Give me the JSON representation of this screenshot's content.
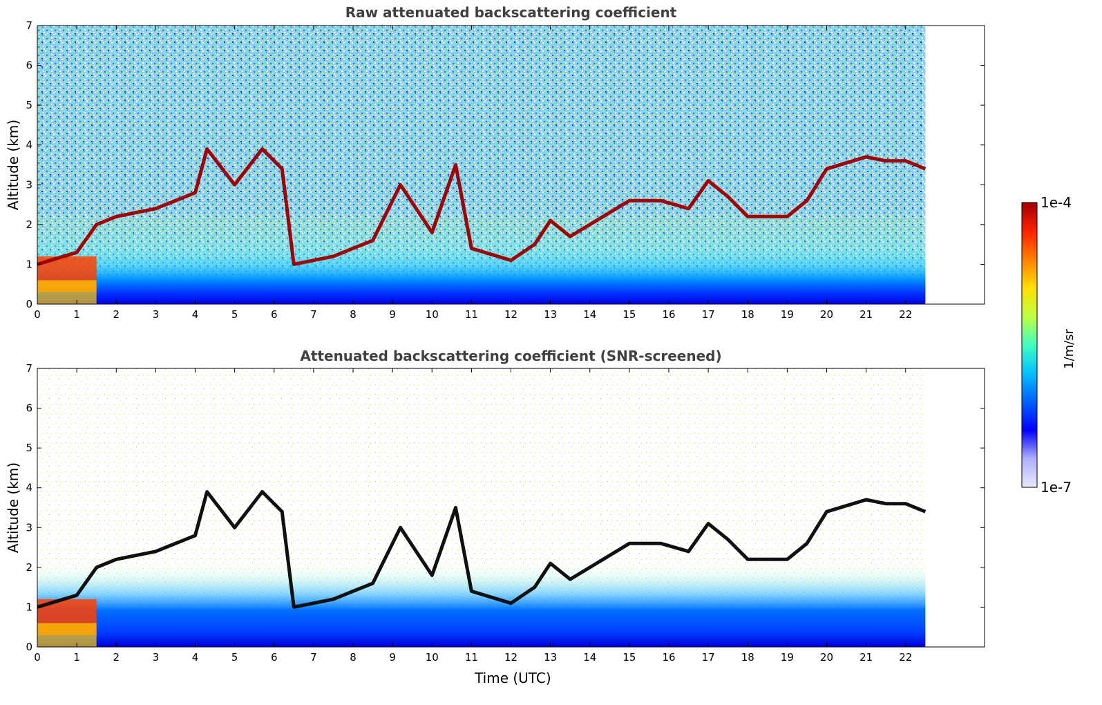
{
  "chart_data": [
    {
      "type": "heatmap",
      "title": "Raw attenuated backscattering coefficient",
      "xlabel": "",
      "ylabel": "Altitude (km)",
      "xlim": [
        0,
        24
      ],
      "ylim": [
        0,
        7
      ],
      "x_ticks": [
        "0",
        "1",
        "2",
        "3",
        "4",
        "5",
        "6",
        "7",
        "8",
        "9",
        "10",
        "11",
        "12",
        "13",
        "14",
        "15",
        "16",
        "17",
        "18",
        "19",
        "20",
        "21",
        "22"
      ],
      "y_ticks": [
        "0",
        "1",
        "2",
        "3",
        "4",
        "5",
        "6",
        "7"
      ],
      "data_end_hour": 22.5,
      "cloud_layer_altitude_km": [
        [
          0,
          1.0
        ],
        [
          1,
          1.3
        ],
        [
          1.5,
          2.0
        ],
        [
          2,
          2.2
        ],
        [
          3,
          2.4
        ],
        [
          4,
          2.8
        ],
        [
          4.3,
          3.9
        ],
        [
          5,
          3.0
        ],
        [
          5.7,
          3.9
        ],
        [
          6.2,
          3.4
        ],
        [
          6.5,
          1.0
        ],
        [
          7.5,
          1.2
        ],
        [
          8.5,
          1.6
        ],
        [
          9.2,
          3.0
        ],
        [
          10,
          1.8
        ],
        [
          10.6,
          3.5
        ],
        [
          11,
          1.4
        ],
        [
          12,
          1.1
        ],
        [
          12.6,
          1.5
        ],
        [
          13,
          2.1
        ],
        [
          13.5,
          1.7
        ],
        [
          14,
          2.0
        ],
        [
          15,
          2.6
        ],
        [
          15.8,
          2.6
        ],
        [
          16.5,
          2.4
        ],
        [
          17,
          3.1
        ],
        [
          17.5,
          2.7
        ],
        [
          18,
          2.2
        ],
        [
          19,
          2.2
        ],
        [
          19.5,
          2.6
        ],
        [
          20,
          3.4
        ],
        [
          21,
          3.7
        ],
        [
          21.5,
          3.6
        ],
        [
          22,
          3.6
        ],
        [
          22.5,
          3.4
        ]
      ]
    },
    {
      "type": "heatmap",
      "title": "Attenuated backscattering coefficient (SNR-screened)",
      "xlabel": "Time (UTC)",
      "ylabel": "Altitude (km)",
      "xlim": [
        0,
        24
      ],
      "ylim": [
        0,
        7
      ],
      "x_ticks": [
        "0",
        "1",
        "2",
        "3",
        "4",
        "5",
        "6",
        "7",
        "8",
        "9",
        "10",
        "11",
        "12",
        "13",
        "14",
        "15",
        "16",
        "17",
        "18",
        "19",
        "20",
        "21",
        "22"
      ],
      "y_ticks": [
        "0",
        "1",
        "2",
        "3",
        "4",
        "5",
        "6",
        "7"
      ],
      "data_end_hour": 22.5,
      "cloud_layer_altitude_km": [
        [
          0,
          1.0
        ],
        [
          1,
          1.3
        ],
        [
          1.5,
          2.0
        ],
        [
          2,
          2.2
        ],
        [
          3,
          2.4
        ],
        [
          4,
          2.8
        ],
        [
          4.3,
          3.9
        ],
        [
          5,
          3.0
        ],
        [
          5.7,
          3.9
        ],
        [
          6.2,
          3.4
        ],
        [
          6.5,
          1.0
        ],
        [
          7.5,
          1.2
        ],
        [
          8.5,
          1.6
        ],
        [
          9.2,
          3.0
        ],
        [
          10,
          1.8
        ],
        [
          10.6,
          3.5
        ],
        [
          11,
          1.4
        ],
        [
          12,
          1.1
        ],
        [
          12.6,
          1.5
        ],
        [
          13,
          2.1
        ],
        [
          13.5,
          1.7
        ],
        [
          14,
          2.0
        ],
        [
          15,
          2.6
        ],
        [
          15.8,
          2.6
        ],
        [
          16.5,
          2.4
        ],
        [
          17,
          3.1
        ],
        [
          17.5,
          2.7
        ],
        [
          18,
          2.2
        ],
        [
          19,
          2.2
        ],
        [
          19.5,
          2.6
        ],
        [
          20,
          3.4
        ],
        [
          21,
          3.7
        ],
        [
          21.5,
          3.6
        ],
        [
          22,
          3.6
        ],
        [
          22.5,
          3.4
        ]
      ]
    }
  ],
  "colorbar": {
    "max_label": "1e-4",
    "min_label": "1e-7",
    "unit_label": "1/m/sr",
    "colormap": "jet",
    "colors": [
      "#e8e8ff",
      "#b0b0ff",
      "#0000ff",
      "#0060ff",
      "#00c0ff",
      "#40ffc0",
      "#c0ff40",
      "#ffe000",
      "#ff8000",
      "#ff2000",
      "#a00000"
    ]
  }
}
